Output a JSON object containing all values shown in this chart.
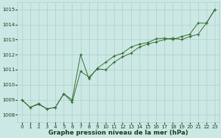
{
  "xlabel": "Graphe pression niveau de la mer (hPa)",
  "x_ticks": [
    0,
    1,
    2,
    3,
    4,
    5,
    6,
    7,
    8,
    9,
    10,
    11,
    12,
    13,
    14,
    15,
    16,
    17,
    18,
    19,
    20,
    21,
    22,
    23
  ],
  "ylim": [
    1007.5,
    1015.5
  ],
  "xlim": [
    -0.5,
    23.5
  ],
  "yticks": [
    1008,
    1009,
    1010,
    1011,
    1012,
    1013,
    1014,
    1015
  ],
  "series1_x": [
    0,
    1,
    2,
    3,
    4,
    5,
    6,
    7,
    8,
    9,
    10,
    11,
    12,
    13,
    14,
    15,
    16,
    17,
    18,
    19,
    20,
    21,
    22,
    23
  ],
  "series1_y": [
    1009.0,
    1008.5,
    1008.7,
    1008.4,
    1008.5,
    1009.4,
    1009.0,
    1012.0,
    1010.4,
    1011.1,
    1011.5,
    1011.9,
    1012.1,
    1012.5,
    1012.7,
    1012.8,
    1013.05,
    1013.1,
    1013.0,
    1013.2,
    1013.35,
    1014.1,
    1014.1,
    1015.0
  ],
  "series2_x": [
    0,
    1,
    2,
    3,
    4,
    5,
    6,
    7,
    8,
    9,
    10,
    11,
    12,
    13,
    14,
    15,
    16,
    17,
    18,
    19,
    20,
    21,
    22,
    23
  ],
  "series2_y": [
    1009.0,
    1008.5,
    1008.75,
    1008.4,
    1008.5,
    1009.4,
    1008.85,
    1010.9,
    1010.5,
    1011.05,
    1011.0,
    1011.5,
    1011.85,
    1012.1,
    1012.5,
    1012.7,
    1012.85,
    1013.0,
    1013.1,
    1013.0,
    1013.2,
    1013.35,
    1014.1,
    1015.0
  ],
  "line_color": "#2d6a2d",
  "marker_color": "#2d6a2d",
  "bg_color": "#cce8e4",
  "grid_color": "#aaccc8",
  "text_color": "#1a3a1a",
  "title_fontsize": 6.5,
  "tick_fontsize": 5.2
}
